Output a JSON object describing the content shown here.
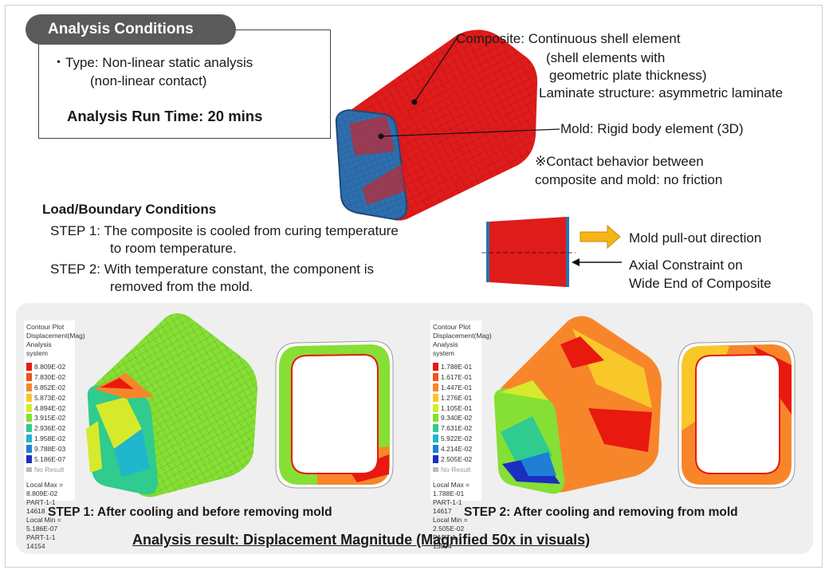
{
  "analysis_conditions": {
    "title": "Analysis Conditions",
    "type_line1": "・Type: Non-linear static analysis",
    "type_line2": "(non-linear contact)",
    "run_time": "Analysis Run Time: 20 mins"
  },
  "callouts": {
    "composite_line1": "Composite: Continuous shell element",
    "composite_line2": "(shell elements with",
    "composite_line3": "geometric plate thickness)",
    "laminate": "Laminate structure: asymmetric laminate",
    "mold": "Mold: Rigid body element (3D)",
    "contact_line1": "※Contact behavior between",
    "contact_line2": "composite and mold: no friction"
  },
  "load": {
    "title": "Load/Boundary Conditions",
    "step1_line1": "STEP 1: The composite is cooled from curing temperature",
    "step1_line2": "to room temperature.",
    "step2_line1": "STEP 2: With temperature constant, the component is",
    "step2_line2": "removed from the mold.",
    "pullout": "Mold pull-out direction",
    "constraint_line1": "Axial Constraint on",
    "constraint_line2": "Wide End of Composite"
  },
  "results": {
    "legend1": {
      "header1": "Contour Plot",
      "header2": "Displacement(Mag)",
      "header3": "Analysis system",
      "values": [
        "8.809E-02",
        "7.830E-02",
        "6.852E-02",
        "5.873E-02",
        "4.894E-02",
        "3.915E-02",
        "2.936E-02",
        "1.958E-02",
        "9.788E-03",
        "5.186E-07"
      ],
      "no_result": "No Result",
      "max_line1": "Local Max = 8.809E-02",
      "max_line2": "PART-1-1 14618",
      "min_line1": "Local Min = 5.186E-07",
      "min_line2": "PART-1-1 14154"
    },
    "legend2": {
      "header1": "Contour Plot",
      "header2": "Displacement(Mag)",
      "header3": "Analysis system",
      "values": [
        "1.788E-01",
        "1.617E-01",
        "1.447E-01",
        "1.276E-01",
        "1.105E-01",
        "9.340E-02",
        "7.631E-02",
        "5.922E-02",
        "4.214E-02",
        "2.505E-02"
      ],
      "no_result": "No Result",
      "max_line1": "Local Max = 1.788E-01",
      "max_line2": "PART-1-1 14617",
      "min_line1": "Local Min = 2.505E-02",
      "min_line2": "PART-1-1 13094"
    },
    "caption1": "STEP 1:  After cooling  and before removing  mold",
    "caption2": "STEP 2:  After cooling  and removing  from mold",
    "bottom_title": "Analysis result: Displacement Magnitude (Magnified 50x in visuals)"
  },
  "colors": {
    "composite_red": "#e01b1b",
    "mold_blue": "#2e6fae",
    "arrow_yellow": "#f6b417",
    "panel_gray": "#efefef",
    "legend_scale": [
      "#e8190f",
      "#f2531a",
      "#f7862b",
      "#f8c82a",
      "#d6ea2b",
      "#86df34",
      "#2fcb8f",
      "#20b6cc",
      "#1f7fd5",
      "#1a2fc0"
    ]
  }
}
